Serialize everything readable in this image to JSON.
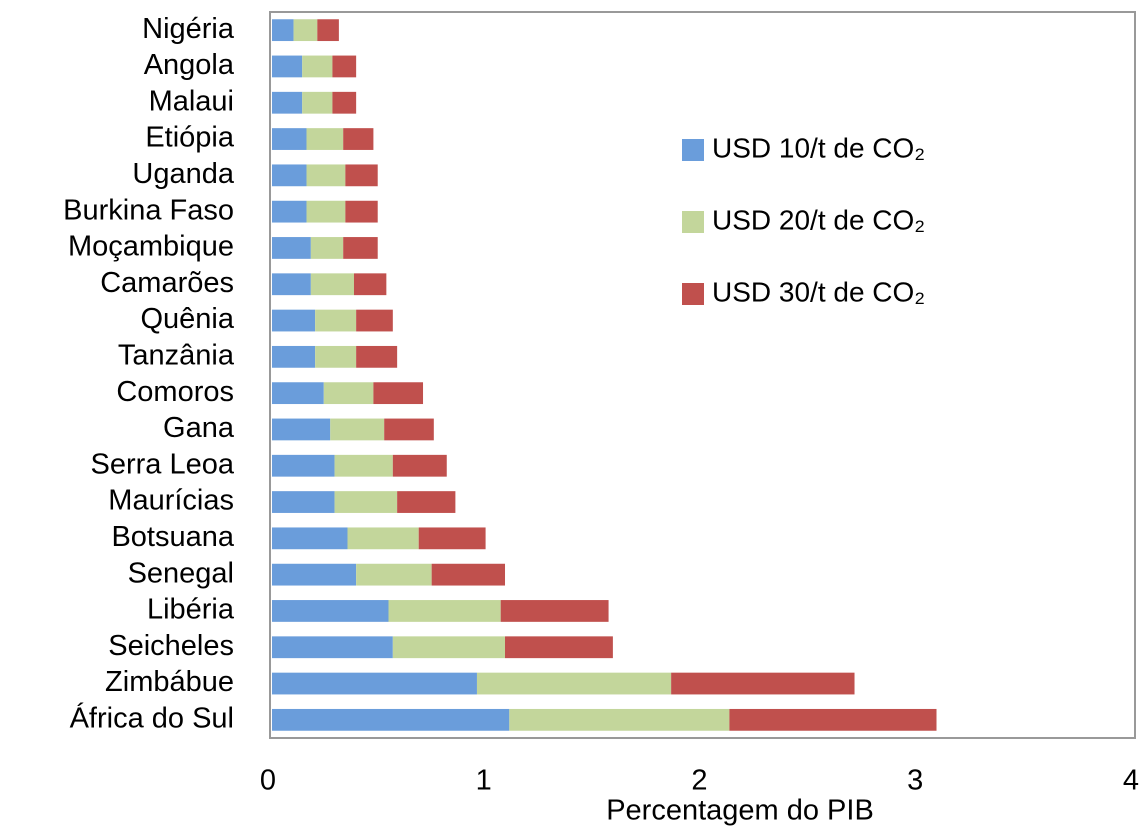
{
  "chart_data": {
    "type": "stacked-barh",
    "xlabel": "Percentagem do PIB",
    "categories": [
      "Nigéria",
      "Angola",
      "Malaui",
      "Etiópia",
      "Uganda",
      "Burkina Faso",
      "Moçambique",
      "Camarões",
      "Quênia",
      "Tanzânia",
      "Comoros",
      "Gana",
      "Serra Leoa",
      "Maurícias",
      "Botsuana",
      "Senegal",
      "Libéria",
      "Seicheles",
      "Zimbábue",
      "África do Sul"
    ],
    "series": [
      {
        "name": "USD 10/t de CO₂",
        "color": "#6a9ddb",
        "values": [
          0.1,
          0.14,
          0.14,
          0.16,
          0.16,
          0.16,
          0.18,
          0.18,
          0.2,
          0.2,
          0.24,
          0.27,
          0.29,
          0.29,
          0.35,
          0.39,
          0.54,
          0.56,
          0.95,
          1.1
        ]
      },
      {
        "name": "USD 20/t de CO₂",
        "color": "#c3d69b",
        "values": [
          0.11,
          0.14,
          0.14,
          0.17,
          0.18,
          0.18,
          0.15,
          0.2,
          0.19,
          0.19,
          0.23,
          0.25,
          0.27,
          0.29,
          0.33,
          0.35,
          0.52,
          0.52,
          0.9,
          1.02
        ]
      },
      {
        "name": "USD 30/t de CO₂",
        "color": "#c0504d",
        "values": [
          0.1,
          0.11,
          0.11,
          0.14,
          0.15,
          0.15,
          0.16,
          0.15,
          0.17,
          0.19,
          0.23,
          0.23,
          0.25,
          0.27,
          0.31,
          0.34,
          0.5,
          0.5,
          0.85,
          0.96
        ]
      }
    ],
    "xlim": [
      0,
      4
    ],
    "xticks": [
      0,
      1,
      2,
      3,
      4
    ],
    "grid": false,
    "legend": "right"
  }
}
